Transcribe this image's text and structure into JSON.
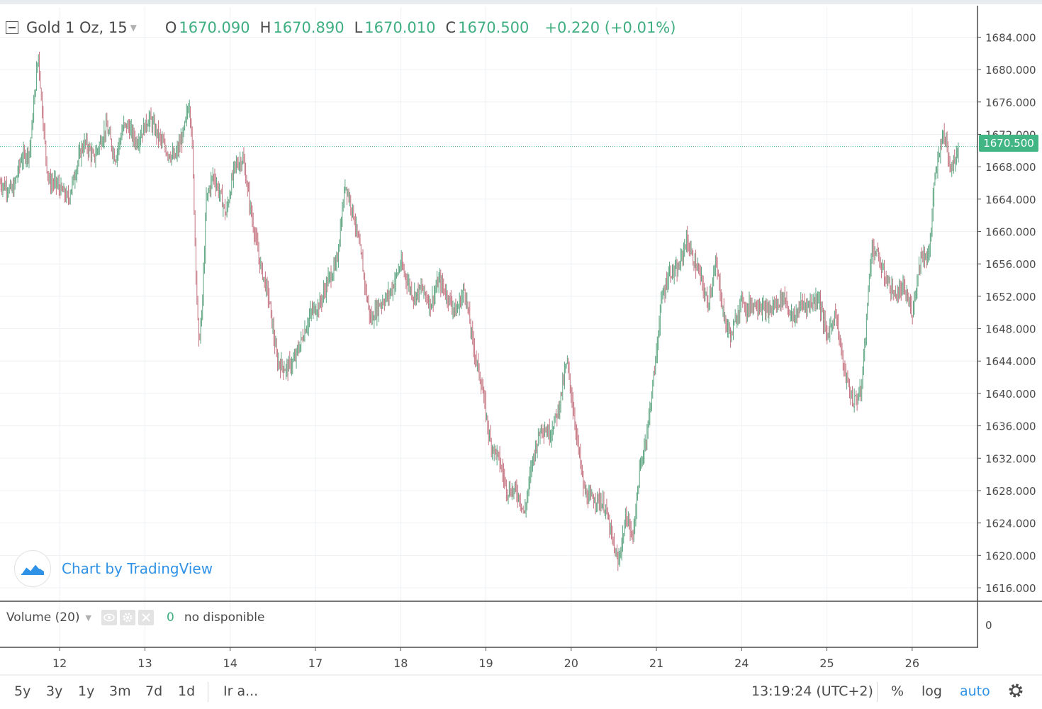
{
  "legend": {
    "symbol": "Gold 1 Oz, 15",
    "open_key": "O",
    "open": "1670.090",
    "high_key": "H",
    "high": "1670.890",
    "low_key": "L",
    "low": "1670.010",
    "close_key": "C",
    "close": "1670.500",
    "change": "+0.220 (+0.01%)"
  },
  "price_tag": "1670.500",
  "watermark": "Chart by TradingView",
  "volume": {
    "label": "Volume (20)",
    "value": "0",
    "status": "no disponible",
    "axis_label": "0"
  },
  "bottom_bar": {
    "ranges": [
      "5y",
      "3y",
      "1y",
      "3m",
      "7d",
      "1d"
    ],
    "goto": "Ir a...",
    "time": "13:19:24 (UTC+2)",
    "percent": "%",
    "log": "log",
    "auto": "auto"
  },
  "colors": {
    "up": "#5aa37e",
    "down": "#c4727f",
    "accent": "#41b583",
    "link": "#2f92e6"
  },
  "chart_data": {
    "type": "line",
    "title": "Gold 1 Oz, 15",
    "interval": "15",
    "ylim": [
      1614,
      1686
    ],
    "y_ticks": [
      1616,
      1620,
      1624,
      1628,
      1632,
      1636,
      1640,
      1644,
      1648,
      1652,
      1656,
      1660,
      1664,
      1668,
      1672,
      1676,
      1680,
      1684
    ],
    "y_tick_labels": [
      "1616.000",
      "1620.000",
      "1624.000",
      "1628.000",
      "1632.000",
      "1636.000",
      "1640.000",
      "1644.000",
      "1648.000",
      "1652.000",
      "1656.000",
      "1660.000",
      "1664.000",
      "1668.000",
      "1672.000",
      "1676.000",
      "1680.000",
      "1684.000"
    ],
    "x_tick_labels": [
      "12",
      "13",
      "14",
      "17",
      "18",
      "19",
      "20",
      "21",
      "24",
      "25",
      "26"
    ],
    "x_domain": [
      0,
      11.35
    ],
    "x_ticks_at": [
      0.7,
      1.7,
      2.7,
      3.7,
      4.7,
      5.7,
      6.7,
      7.7,
      8.7,
      9.7,
      10.7
    ],
    "last_price": 1670.5,
    "series": [
      {
        "x": [
          0,
          0.15,
          0.25,
          0.35,
          0.45,
          0.48,
          0.55,
          0.58,
          0.65,
          0.8,
          0.95,
          1.0,
          1.1,
          1.25,
          1.35,
          1.45,
          1.5,
          1.6,
          1.75,
          1.85,
          1.95,
          2.05,
          2.15,
          2.22,
          2.25,
          2.3,
          2.33,
          2.37,
          2.42,
          2.5,
          2.6,
          2.65,
          2.75,
          2.85,
          2.95,
          3.05,
          3.15,
          3.25,
          3.35,
          3.45,
          3.55,
          3.65,
          3.75,
          3.85,
          3.95,
          4.05,
          4.15,
          4.25,
          4.3,
          4.35,
          4.45,
          4.55,
          4.6,
          4.7,
          4.85,
          4.95,
          5.05,
          5.15,
          5.25,
          5.35,
          5.45,
          5.55,
          5.65,
          5.75,
          5.85,
          5.95,
          6.05,
          6.1,
          6.15,
          6.25,
          6.35,
          6.45,
          6.55,
          6.65,
          6.75,
          6.85,
          6.9,
          7.0,
          7.1,
          7.2,
          7.25,
          7.35,
          7.42,
          7.5,
          7.6,
          7.7,
          7.75,
          7.85,
          7.95,
          8.05,
          8.15,
          8.2,
          8.25,
          8.3,
          8.4,
          8.5,
          8.58,
          8.65,
          8.72,
          8.75,
          8.8,
          8.9,
          9.0,
          9.1,
          9.2,
          9.3,
          9.4,
          9.5,
          9.6,
          9.7,
          9.8,
          9.9,
          10.0,
          10.1,
          10.15,
          10.22,
          10.3,
          10.35,
          10.4,
          10.5,
          10.6,
          10.7,
          10.8,
          10.9,
          10.95,
          11.05,
          11.1,
          11.15,
          11.2,
          11.25
        ],
        "y": [
          1666,
          1665,
          1669,
          1670,
          1682,
          1677,
          1668,
          1666,
          1666,
          1664,
          1670,
          1671,
          1669,
          1673,
          1669,
          1673,
          1673,
          1671,
          1674,
          1672,
          1670,
          1669,
          1672,
          1676,
          1672,
          1655,
          1646,
          1650,
          1664,
          1667,
          1664,
          1662,
          1668,
          1669,
          1662,
          1656,
          1652,
          1644,
          1643,
          1644,
          1647,
          1650,
          1651,
          1654,
          1656,
          1666,
          1662,
          1656,
          1652,
          1649,
          1651,
          1652,
          1653,
          1656,
          1652,
          1653,
          1651,
          1654,
          1652,
          1650,
          1653,
          1646,
          1641,
          1634,
          1632,
          1628,
          1628,
          1627,
          1625,
          1632,
          1636,
          1635,
          1638,
          1644,
          1636,
          1628,
          1627,
          1627,
          1626,
          1621,
          1619,
          1625,
          1622,
          1630,
          1636,
          1645,
          1651,
          1655,
          1655,
          1659,
          1656,
          1655,
          1653,
          1651,
          1656,
          1649,
          1647,
          1650,
          1652,
          1650,
          1651,
          1651,
          1650,
          1651,
          1652,
          1649,
          1651,
          1651,
          1652,
          1647,
          1650,
          1643,
          1639,
          1640,
          1647,
          1658,
          1657,
          1655,
          1654,
          1652,
          1653,
          1650,
          1657,
          1657,
          1665,
          1672,
          1671,
          1668,
          1669,
          1670.5
        ]
      }
    ],
    "volume_series": {
      "name": "Volume (20)",
      "y_tick_labels": [
        "0"
      ]
    }
  }
}
